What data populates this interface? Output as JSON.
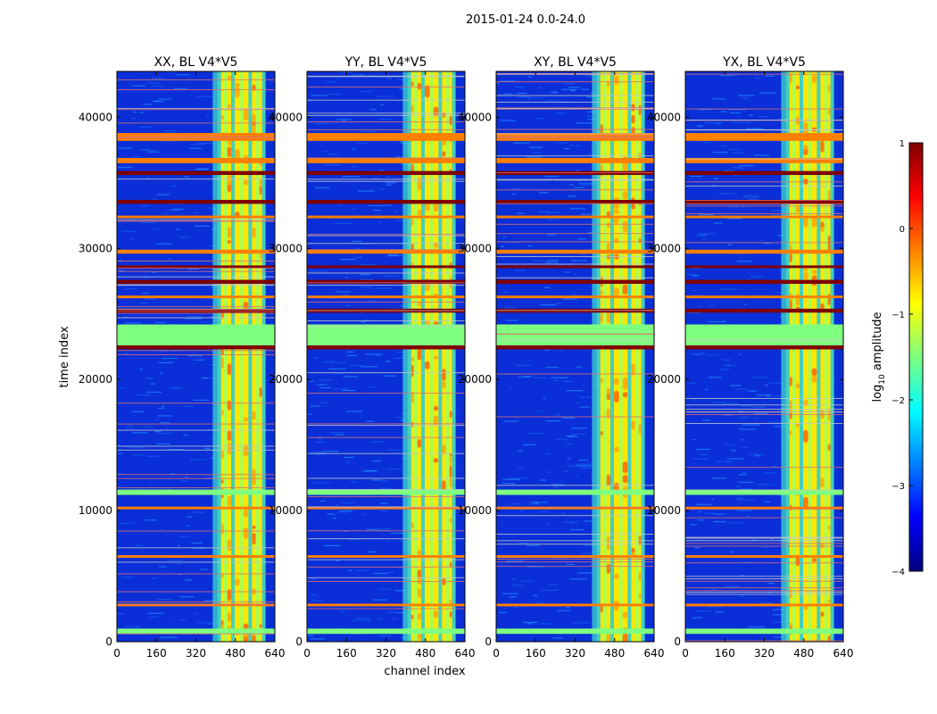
{
  "suptitle": "2015-01-24 0.0-24.0",
  "colors": {
    "background": "#ffffff",
    "axis": "#000000",
    "noise_low": "#0a2fd8",
    "noise_mid": "#1f8cff",
    "band_green": "#a8ff50",
    "band_yellow": "#ffe600",
    "band_orange": "#ff7a00",
    "band_darkred": "#8b0000"
  },
  "chart_data": {
    "type": "heatmap",
    "xlabel": "channel index",
    "ylabel": "time index",
    "xlim": [
      0,
      640
    ],
    "ylim": [
      0,
      43500
    ],
    "xticks": [
      "0",
      "160",
      "320",
      "480",
      "640"
    ],
    "yticks": [
      "0",
      "10000",
      "20000",
      "30000",
      "40000"
    ],
    "xtick_values": [
      0,
      160,
      320,
      480,
      640
    ],
    "ytick_values": [
      0,
      10000,
      20000,
      30000,
      40000
    ],
    "panels": [
      {
        "title": "XX, BL V4*V5"
      },
      {
        "title": "YY, BL V4*V5"
      },
      {
        "title": "XY, BL V4*V5"
      },
      {
        "title": "YX, BL V4*V5"
      }
    ],
    "colorbar": {
      "label_prefix": "log",
      "label_sub": "10",
      "label_suffix": " amplitude",
      "range": [
        -4,
        1
      ],
      "ticks": [
        "1",
        "0",
        "−1",
        "−2",
        "−3",
        "−4"
      ],
      "tick_values": [
        1,
        0,
        -1,
        -2,
        -3,
        -4
      ],
      "colormap": [
        "#00007f",
        "#0000ff",
        "#007fff",
        "#00ffff",
        "#7fff7f",
        "#ffff00",
        "#ff7f00",
        "#ff0000",
        "#7f0000"
      ]
    },
    "rfi_channel_range": [
      410,
      600
    ],
    "rfi_channel_columns": [
      415,
      440,
      470,
      505,
      540,
      570,
      595
    ],
    "flagged_time_bands": [
      {
        "t0": 22600,
        "t1": 24200,
        "level": -1.4
      },
      {
        "t0": 38200,
        "t1": 38800,
        "level": -0.2
      },
      {
        "t0": 36500,
        "t1": 36900,
        "level": -0.3
      },
      {
        "t0": 35600,
        "t1": 35900,
        "level": 0.8
      },
      {
        "t0": 33400,
        "t1": 33700,
        "level": 0.9
      },
      {
        "t0": 32300,
        "t1": 32500,
        "level": -0.2
      },
      {
        "t0": 29600,
        "t1": 29900,
        "level": -0.3
      },
      {
        "t0": 28500,
        "t1": 28700,
        "level": 0.8
      },
      {
        "t0": 27300,
        "t1": 27600,
        "level": 0.7
      },
      {
        "t0": 26200,
        "t1": 26400,
        "level": -0.2
      },
      {
        "t0": 25100,
        "t1": 25400,
        "level": 0.9
      },
      {
        "t0": 22300,
        "t1": 22600,
        "level": 0.8
      },
      {
        "t0": 11200,
        "t1": 11600,
        "level": -1.2
      },
      {
        "t0": 10100,
        "t1": 10300,
        "level": -0.3
      },
      {
        "t0": 6400,
        "t1": 6600,
        "level": -0.3
      },
      {
        "t0": 2700,
        "t1": 2900,
        "level": -0.4
      },
      {
        "t0": 600,
        "t1": 1000,
        "level": -1.3
      }
    ]
  }
}
